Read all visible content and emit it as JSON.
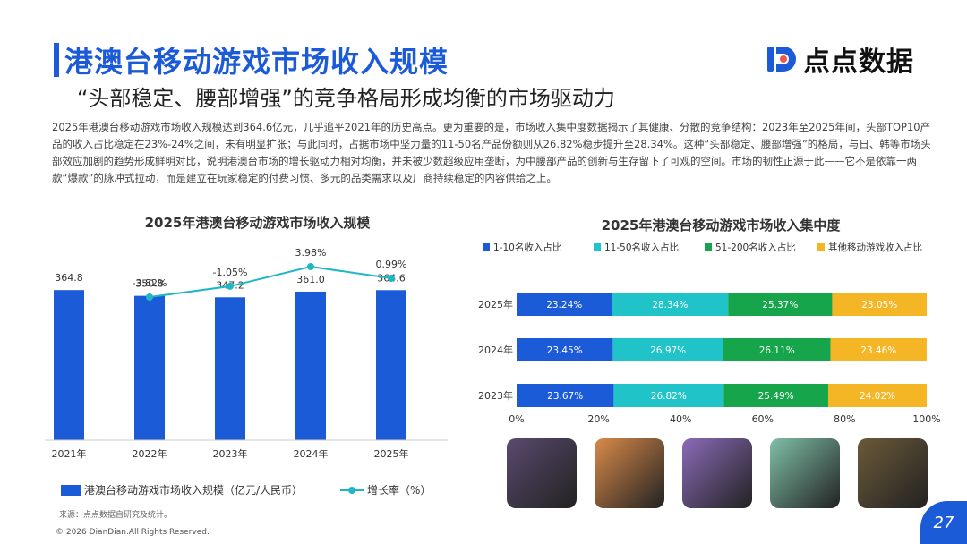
{
  "header": {
    "title": "港澳台移动游戏市场收入规模",
    "subtitle": "“头部稳定、腰部增强”的竞争格局形成均衡的市场驱动力",
    "logo_text": "点点数据"
  },
  "paragraph": "2025年港澳台移动游戏市场收入规模达到364.6亿元，几乎追平2021年的历史高点。更为重要的是，市场收入集中度数据揭示了其健康、分散的竞争结构：2023年至2025年间，头部TOP10产品的收入占比稳定在23%-24%之间，未有明显扩张；与此同时，占据市场中坚力量的11-50名产品份额则从26.82%稳步提升至28.34%。这种“头部稳定、腰部增强”的格局，与日、韩等市场头部效应加剧的趋势形成鲜明对比，说明港澳台市场的增长驱动力相对均衡，并未被少数超级应用垄断，为中腰部产品的创新与生存留下了可观的空间。市场的韧性正源于此——它不是依靠一两款“爆款”的脉冲式拉动，而是建立在玩家稳定的付费习惯、多元的品类需求以及厂商持续稳定的内容供给之上。",
  "source": "来源：点点数据自研究及统计。",
  "copyright": "© 2026 DianDian.All Rights Reserved.",
  "page_number": "27",
  "colors": {
    "brand": "#1c5bd8",
    "growth_line": "#1fb7c4",
    "seg_1": "#1c5bd8",
    "seg_2": "#1fc3c8",
    "seg_3": "#16a54a",
    "seg_4": "#f5b626"
  },
  "chart_data": [
    {
      "type": "bar",
      "title": "2025年港澳台移动游戏市场收入规模",
      "categories": [
        "2021年",
        "2022年",
        "2023年",
        "2024年",
        "2025年"
      ],
      "series": [
        {
          "name": "港澳台移动游戏市场收入规模（亿元/人民币）",
          "type": "bar",
          "values": [
            364.8,
            350.8,
            347.2,
            361.0,
            364.6
          ],
          "labels": [
            "364.8",
            "350.8",
            "347.2",
            "361.0",
            "364.6"
          ]
        },
        {
          "name": "增长率（%）",
          "type": "line",
          "x": [
            "2022年",
            "2023年",
            "2024年",
            "2025年"
          ],
          "values": [
            -3.82,
            -1.05,
            3.98,
            0.99
          ],
          "labels": [
            "-3.82%",
            "-1.05%",
            "3.98%",
            "0.99%"
          ]
        }
      ],
      "ylim": [
        0,
        500
      ],
      "grid": false,
      "legend_position": "bottom"
    },
    {
      "type": "bar",
      "orientation": "horizontal",
      "stacked": true,
      "title": "2025年港澳台移动游戏市场收入集中度",
      "categories": [
        "2025年",
        "2024年",
        "2023年"
      ],
      "series": [
        {
          "name": "1-10名收入占比",
          "values": [
            23.24,
            23.45,
            23.67
          ],
          "labels": [
            "23.24%",
            "23.45%",
            "23.67%"
          ]
        },
        {
          "name": "11-50名收入占比",
          "values": [
            28.34,
            26.97,
            26.82
          ],
          "labels": [
            "28.34%",
            "26.97%",
            "26.82%"
          ]
        },
        {
          "name": "51-200名收入占比",
          "values": [
            25.37,
            26.11,
            25.49
          ],
          "labels": [
            "25.37%",
            "26.11%",
            "25.49%"
          ]
        },
        {
          "name": "其他移动游戏收入占比",
          "values": [
            23.05,
            23.46,
            24.02
          ],
          "labels": [
            "23.05%",
            "23.46%",
            "24.02%"
          ]
        }
      ],
      "x_ticks": [
        "0%",
        "20%",
        "40%",
        "60%",
        "80%",
        "100%"
      ],
      "xlim": [
        0,
        100
      ],
      "grid": false,
      "legend_position": "top"
    }
  ],
  "legend_left": {
    "bar_label": "港澳台移动游戏市场收入规模（亿元/人民币）",
    "line_label": "增长率（%）"
  },
  "thumbnails": [
    {
      "icon": "game-thumbnail-1",
      "color": "#5a4a6e"
    },
    {
      "icon": "game-thumbnail-2",
      "color": "#d98a4a"
    },
    {
      "icon": "game-thumbnail-3",
      "color": "#8a6bb8"
    },
    {
      "icon": "game-thumbnail-4",
      "color": "#7fbfa8"
    },
    {
      "icon": "game-thumbnail-5",
      "color": "#6b5a3a"
    }
  ]
}
